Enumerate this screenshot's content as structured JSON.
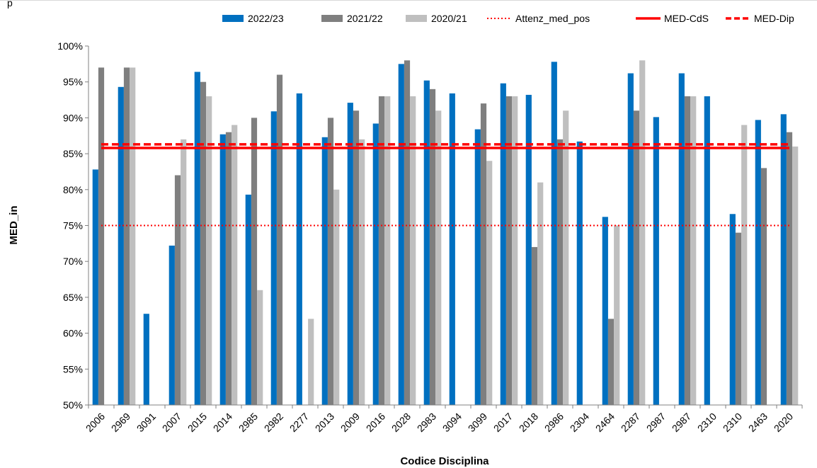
{
  "chart_data": {
    "type": "bar",
    "title": "",
    "title_fragment": "p",
    "xlabel": "Codice Disciplina",
    "ylabel": "MED_in",
    "ylim": [
      50,
      100
    ],
    "yticks": [
      "50%",
      "55%",
      "60%",
      "65%",
      "70%",
      "75%",
      "80%",
      "85%",
      "90%",
      "95%",
      "100%"
    ],
    "ytick_values": [
      50,
      55,
      60,
      65,
      70,
      75,
      80,
      85,
      90,
      95,
      100
    ],
    "grid": false,
    "legend_position": "top",
    "categories": [
      "2006",
      "2969",
      "3091",
      "2007",
      "2015",
      "2014",
      "2985",
      "2982",
      "2277",
      "2013",
      "2009",
      "2016",
      "2028",
      "2983",
      "3094",
      "3099",
      "2017",
      "2018",
      "2986",
      "2304",
      "2464",
      "2287",
      "2987",
      "2987",
      "2310",
      "2310",
      "2463",
      "2020"
    ],
    "series": [
      {
        "name": "2022/23",
        "color": "#0070c0",
        "values": [
          82.8,
          94.3,
          62.7,
          72.2,
          96.4,
          87.7,
          79.3,
          90.9,
          93.4,
          87.3,
          92.1,
          89.2,
          97.5,
          95.2,
          93.4,
          88.4,
          94.8,
          93.2,
          97.8,
          86.7,
          76.2,
          96.2,
          90.1,
          96.2,
          93.0,
          76.6,
          89.7,
          90.5
        ]
      },
      {
        "name": "2021/22",
        "color": "#7f7f7f",
        "values": [
          97,
          97,
          null,
          82,
          95,
          88,
          90,
          96,
          null,
          90,
          91,
          93,
          98,
          94,
          null,
          92,
          93,
          72,
          87,
          null,
          62,
          91,
          null,
          93,
          null,
          74,
          83,
          88
        ]
      },
      {
        "name": "2020/21",
        "color": "#bfbfbf",
        "values": [
          null,
          97,
          null,
          87,
          93,
          89,
          66,
          null,
          62,
          80,
          87,
          93,
          93,
          91,
          null,
          84,
          93,
          81,
          91,
          null,
          75,
          98,
          null,
          93,
          null,
          89,
          null,
          86
        ]
      }
    ],
    "reference_lines": [
      {
        "name": "Attenz_med_pos",
        "value": 75,
        "color": "#ff0000",
        "style": "dotted"
      },
      {
        "name": "MED-CdS",
        "value": 85.8,
        "color": "#ff0000",
        "style": "solid"
      },
      {
        "name": "MED-Dip",
        "value": 86.3,
        "color": "#ff0000",
        "style": "dashed"
      }
    ]
  }
}
